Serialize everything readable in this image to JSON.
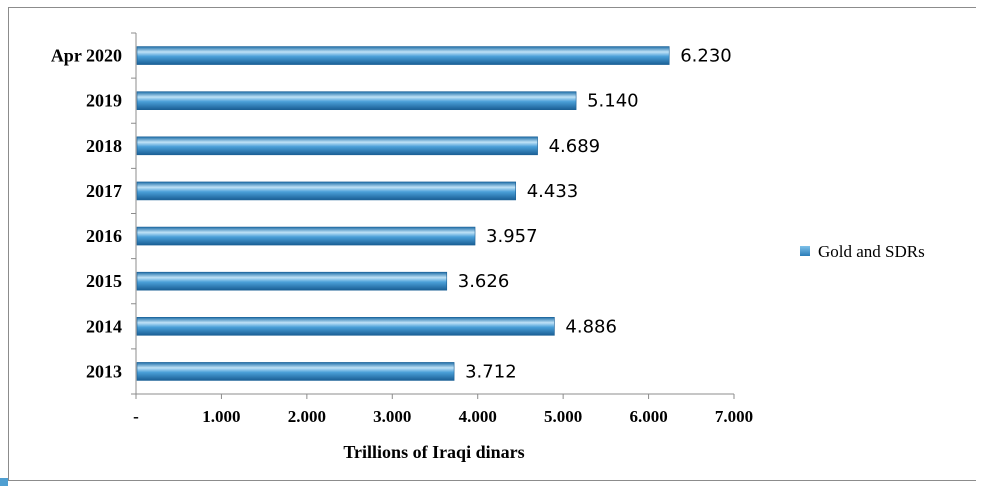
{
  "chart_data": {
    "type": "bar",
    "orientation": "horizontal",
    "categories": [
      "Apr 2020",
      "2019",
      "2018",
      "2017",
      "2016",
      "2015",
      "2014",
      "2013"
    ],
    "series": [
      {
        "name": "Gold and SDRs",
        "values": [
          6.23,
          5.14,
          4.689,
          4.433,
          3.957,
          3.626,
          4.886,
          3.712
        ]
      }
    ],
    "data_labels": [
      "6.230",
      "5.140",
      "4.689",
      "4.433",
      "3.957",
      "3.626",
      "4.886",
      "3.712"
    ],
    "xlabel": "Trillions of Iraqi dinars",
    "ylabel": "",
    "xlim": [
      0,
      7
    ],
    "x_ticks": [
      0,
      1,
      2,
      3,
      4,
      5,
      6,
      7
    ],
    "x_tick_labels": [
      "-",
      "1.000",
      "2.000",
      "3.000",
      "4.000",
      "5.000",
      "6.000",
      "7.000"
    ],
    "grid": false,
    "legend_position": "right",
    "colors": {
      "bar": "#4a9fd8",
      "bar_light": "#bfe2f7",
      "bar_dark": "#1e6ea8",
      "legend": "#3b8fcb"
    }
  }
}
